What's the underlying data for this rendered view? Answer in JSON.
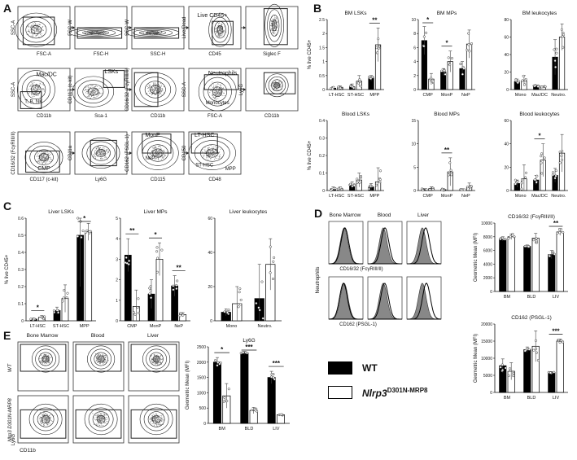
{
  "panel_labels": [
    "A",
    "B",
    "C",
    "D",
    "E"
  ],
  "colors": {
    "wt": "#000000",
    "mut": "#ffffff",
    "gate": "#222222",
    "dot": "#777777",
    "histo_fill": "#888888"
  },
  "panelA": {
    "row1": [
      {
        "gate": "",
        "x": "FSC-A",
        "y": "SSC-A"
      },
      {
        "gate": "",
        "x": "FSC-H",
        "y": "FSC-W"
      },
      {
        "gate": "",
        "x": "SSC-H",
        "y": "SSC-W"
      },
      {
        "gate": "Live CD45+",
        "x": "CD45",
        "y": "Live/Dead"
      },
      {
        "gate": "",
        "x": "Siglec F",
        "y": ""
      }
    ],
    "row2": [
      {
        "gate": "Mac/DC",
        "gate2": "T, B, NK",
        "x": "CD11b",
        "y": "SSC-A"
      },
      {
        "gate": "LSKs",
        "x": "Sca-1",
        "y": "CD117 (c-kit)"
      },
      {
        "gate": "",
        "x": "CD11b",
        "y": "CD16/32 (FcγRIII/II)"
      },
      {
        "gate": "Neutrophils",
        "gate2": "Monocytes",
        "x": "FSC-A",
        "y": "SSC-A"
      },
      {
        "gate": "",
        "x": "CD11b",
        "y": "Ly6G"
      }
    ],
    "row3": [
      {
        "gate": "CMP",
        "x": "CD117 (c-kit)",
        "y": "CD16/32 (FcγRIII/II)"
      },
      {
        "gate": "",
        "x": "Ly6G",
        "y": "CD11a"
      },
      {
        "gate": "MonP",
        "gate2": "NeP",
        "x": "CD115",
        "y": "CD162 (PSGL-1)"
      },
      {
        "gate": "LT-HSC",
        "gate2": "ST-HSC",
        "gate3": "MPP",
        "x": "CD48",
        "y": "CD150"
      }
    ]
  },
  "panelB": {
    "ylabel_top": "% live CD45+",
    "ylabel_bottom": "% live CD45+",
    "charts": [
      {
        "title": "BM LSKs",
        "categories": [
          "LT-HSC",
          "ST-HSC",
          "MPP"
        ]
      },
      {
        "title": "BM MPs",
        "categories": [
          "CMP",
          "MonP",
          "NeP"
        ]
      },
      {
        "title": "BM leukocytes",
        "categories": [
          "Mono",
          "Mac/DC",
          "Neutro."
        ]
      },
      {
        "title": "Blood LSKs",
        "categories": [
          "LT-HSC",
          "ST-HSC",
          "MPP"
        ]
      },
      {
        "title": "Blood MPs",
        "categories": [
          "CMP",
          "MonP",
          "NeP"
        ]
      },
      {
        "title": "Blood leukocytes",
        "categories": [
          "Mono",
          "Mac/DC",
          "Neutro."
        ]
      }
    ]
  },
  "panelC": {
    "ylabel": "% live CD45+",
    "charts": [
      {
        "title": "Liver LSKs",
        "categories": [
          "LT-HSC",
          "ST-HSC",
          "MPP"
        ]
      },
      {
        "title": "Liver MPs",
        "categories": [
          "CMP",
          "MonP",
          "NeP"
        ]
      },
      {
        "title": "Liver leukocytes",
        "categories": [
          "Mono",
          "Neutro."
        ]
      }
    ]
  },
  "panelD": {
    "columns": [
      "Bone Marrow",
      "Blood",
      "Liver"
    ],
    "row_label": "Neutrophils",
    "markers": [
      "CD16/32 (FcγRIII/II)",
      "CD162 (PSGL-1)"
    ],
    "bar_ylabel": "Geometric Mean (MFI)",
    "bar_groups": [
      "BM",
      "BLD",
      "LIV"
    ]
  },
  "panelE": {
    "columns": [
      "Bone Marrow",
      "Blood",
      "Liver"
    ],
    "rows": [
      "WT",
      "Nlrp3 D301N-MRP8"
    ],
    "x": "CD11b",
    "y": "Ly6G",
    "bar_title": "Ly6G",
    "bar_ylabel": "Geometric Mean (MFI)",
    "bar_groups": [
      "BM",
      "BLD",
      "LIV"
    ]
  },
  "legend": {
    "wt": "WT",
    "mut_gene": "Nlrp3",
    "mut_allele": "D301N-MRP8"
  },
  "chart_data": [
    {
      "type": "bar",
      "title": "BM LSKs",
      "categories": [
        "LT-HSC",
        "ST-HSC",
        "MPP"
      ],
      "ylim": [
        0,
        2.5
      ],
      "ylabel": "% live CD45+",
      "yticks": [
        0,
        0.5,
        1.0,
        1.5,
        2.0,
        2.5
      ],
      "series": [
        {
          "name": "WT",
          "values": [
            0.05,
            0.1,
            0.4
          ],
          "err": [
            0.05,
            0.1,
            0.1
          ]
        },
        {
          "name": "Nlrp3 D301N-MRP8",
          "values": [
            0.08,
            0.3,
            1.6
          ],
          "err": [
            0.05,
            0.2,
            0.6
          ]
        }
      ],
      "annotations": [
        "**"
      ],
      "sig": [
        {
          "cat": 2,
          "label": "**"
        }
      ]
    },
    {
      "type": "bar",
      "title": "BM MPs",
      "categories": [
        "CMP",
        "MonP",
        "NeP"
      ],
      "ylim": [
        0,
        10
      ],
      "yticks": [
        0,
        2,
        4,
        6,
        8,
        10
      ],
      "series": [
        {
          "name": "WT",
          "values": [
            7,
            2.5,
            3
          ],
          "err": [
            2,
            0.5,
            1
          ]
        },
        {
          "name": "Nlrp3 D301N-MRP8",
          "values": [
            1.5,
            4,
            6.5
          ],
          "err": [
            0.8,
            1.5,
            2
          ]
        }
      ],
      "sig": [
        {
          "cat": 0,
          "label": "*"
        },
        {
          "cat": 1,
          "label": "*"
        }
      ]
    },
    {
      "type": "bar",
      "title": "BM leukocytes",
      "categories": [
        "Mono",
        "Mac/DC",
        "Neutro."
      ],
      "ylim": [
        0,
        80
      ],
      "yticks": [
        0,
        20,
        40,
        60,
        80
      ],
      "series": [
        {
          "name": "WT",
          "values": [
            9,
            4,
            37
          ],
          "err": [
            3,
            1,
            20
          ]
        },
        {
          "name": "Nlrp3 D301N-MRP8",
          "values": [
            10,
            3,
            60
          ],
          "err": [
            6,
            1,
            15
          ]
        }
      ],
      "sig": []
    },
    {
      "type": "bar",
      "title": "Blood LSKs",
      "categories": [
        "LT-HSC",
        "ST-HSC",
        "MPP"
      ],
      "ylim": [
        0,
        0.4
      ],
      "yticks": [
        0,
        0.1,
        0.2,
        0.3,
        0.4
      ],
      "series": [
        {
          "name": "WT",
          "values": [
            0.01,
            0.03,
            0.02
          ],
          "err": [
            0.01,
            0.02,
            0.02
          ]
        },
        {
          "name": "Nlrp3 D301N-MRP8",
          "values": [
            0.01,
            0.06,
            0.05
          ],
          "err": [
            0.01,
            0.04,
            0.08
          ]
        }
      ],
      "sig": []
    },
    {
      "type": "bar",
      "title": "Blood MPs",
      "categories": [
        "CMP",
        "MonP",
        "NeP"
      ],
      "ylim": [
        0,
        15
      ],
      "yticks": [
        0,
        5,
        10,
        15
      ],
      "series": [
        {
          "name": "WT",
          "values": [
            0.2,
            0.2,
            0.2
          ],
          "err": [
            0.2,
            0.2,
            0.1
          ]
        },
        {
          "name": "Nlrp3 D301N-MRP8",
          "values": [
            0.4,
            4,
            0.8
          ],
          "err": [
            0.4,
            3,
            0.8
          ]
        }
      ],
      "sig": [
        {
          "cat": 1,
          "label": "**"
        }
      ]
    },
    {
      "type": "bar",
      "title": "Blood leukocytes",
      "categories": [
        "Mono",
        "Mac/DC",
        "Neutro."
      ],
      "ylim": [
        0,
        60
      ],
      "yticks": [
        0,
        20,
        40,
        60
      ],
      "series": [
        {
          "name": "WT",
          "values": [
            6,
            9,
            13
          ],
          "err": [
            3,
            4,
            6
          ]
        },
        {
          "name": "Nlrp3 D301N-MRP8",
          "values": [
            10,
            26,
            32
          ],
          "err": [
            12,
            14,
            16
          ]
        }
      ],
      "sig": [
        {
          "cat": 1,
          "label": "*"
        }
      ]
    },
    {
      "type": "bar",
      "title": "Liver LSKs",
      "categories": [
        "LT-HSC",
        "ST-HSC",
        "MPP"
      ],
      "ylim": [
        0,
        0.6
      ],
      "yticks": [
        0,
        0.1,
        0.2,
        0.3,
        0.4,
        0.5,
        0.6
      ],
      "ylabel": "% live CD45+",
      "series": [
        {
          "name": "WT",
          "values": [
            0.01,
            0.06,
            0.5
          ],
          "err": [
            0.005,
            0.02,
            0.3
          ]
        },
        {
          "name": "Nlrp3 D301N-MRP8",
          "values": [
            0.02,
            0.13,
            0.52
          ],
          "err": [
            0.01,
            0.08,
            0.05
          ]
        }
      ],
      "sig": [
        {
          "cat": 0,
          "label": "*"
        },
        {
          "cat": 2,
          "label": "*"
        }
      ]
    },
    {
      "type": "bar",
      "title": "Liver MPs",
      "categories": [
        "CMP",
        "MonP",
        "NeP"
      ],
      "ylim": [
        0,
        5
      ],
      "yticks": [
        0,
        1,
        2,
        3,
        4,
        5
      ],
      "series": [
        {
          "name": "WT",
          "values": [
            3.2,
            1.3,
            1.7
          ],
          "err": [
            0.8,
            0.7,
            0.5
          ]
        },
        {
          "name": "Nlrp3 D301N-MRP8",
          "values": [
            0.7,
            3,
            0.3
          ],
          "err": [
            0.8,
            0.8,
            0.1
          ]
        }
      ],
      "sig": [
        {
          "cat": 0,
          "label": "**"
        },
        {
          "cat": 1,
          "label": "*"
        },
        {
          "cat": 2,
          "label": "**"
        }
      ]
    },
    {
      "type": "bar",
      "title": "Liver leukocytes",
      "categories": [
        "Mono",
        "Neutro."
      ],
      "ylim": [
        0,
        60
      ],
      "yticks": [
        0,
        20,
        40,
        60
      ],
      "series": [
        {
          "name": "WT",
          "values": [
            5,
            13
          ],
          "err": [
            2,
            20
          ]
        },
        {
          "name": "Nlrp3 D301N-MRP8",
          "values": [
            10,
            33
          ],
          "err": [
            10,
            15
          ]
        }
      ],
      "sig": []
    },
    {
      "type": "bar",
      "title": "CD16/32 (FcγRIII/II)",
      "categories": [
        "BM",
        "BLD",
        "LIV"
      ],
      "ylim": [
        0,
        10000
      ],
      "yticks": [
        0,
        2000,
        4000,
        6000,
        8000,
        10000
      ],
      "ylabel": "Geometric Mean (MFI)",
      "series": [
        {
          "name": "WT",
          "values": [
            7700,
            6600,
            5400
          ],
          "err": [
            300,
            200,
            600
          ]
        },
        {
          "name": "Nlrp3 D301N-MRP8",
          "values": [
            8000,
            7800,
            8700
          ],
          "err": [
            400,
            700,
            500
          ]
        }
      ],
      "sig": [
        {
          "cat": 2,
          "label": "**"
        }
      ]
    },
    {
      "type": "bar",
      "title": "CD162 (PSGL-1)",
      "categories": [
        "BM",
        "BLD",
        "LIV"
      ],
      "ylim": [
        0,
        20000
      ],
      "yticks": [
        0,
        5000,
        10000,
        15000,
        20000
      ],
      "ylabel": "Geometric Mean (MFI)",
      "series": [
        {
          "name": "WT",
          "values": [
            7800,
            12500,
            5800
          ],
          "err": [
            2000,
            800,
            300
          ]
        },
        {
          "name": "Nlrp3 D301N-MRP8",
          "values": [
            6200,
            13500,
            15000
          ],
          "err": [
            2500,
            4500,
            600
          ]
        }
      ],
      "sig": [
        {
          "cat": 2,
          "label": "***"
        }
      ]
    },
    {
      "type": "bar",
      "title": "Ly6G",
      "categories": [
        "BM",
        "BLD",
        "LIV"
      ],
      "ylim": [
        0,
        2500
      ],
      "yticks": [
        0,
        500,
        1000,
        1500,
        2000,
        2500
      ],
      "ylabel": "Geometric Mean (MFI)",
      "series": [
        {
          "name": "WT",
          "values": [
            2000,
            2300,
            1500
          ],
          "err": [
            150,
            50,
            200
          ]
        },
        {
          "name": "Nlrp3 D301N-MRP8",
          "values": [
            900,
            420,
            280
          ],
          "err": [
            400,
            100,
            30
          ]
        }
      ],
      "sig": [
        {
          "cat": 0,
          "label": "*"
        },
        {
          "cat": 1,
          "label": "***"
        },
        {
          "cat": 2,
          "label": "***"
        }
      ]
    }
  ]
}
